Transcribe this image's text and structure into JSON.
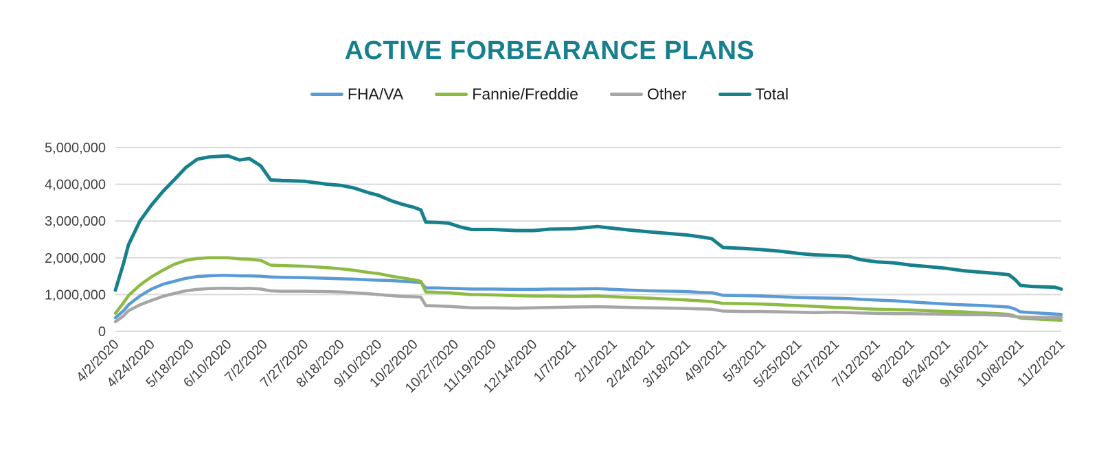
{
  "header": {
    "title": "ACTIVE FORBEARANCE PLANS",
    "title_color": "#17808F"
  },
  "chart_data": {
    "type": "line",
    "title": "ACTIVE FORBEARANCE PLANS",
    "xlabel": "",
    "ylabel": "",
    "ylim": [
      0,
      5000000
    ],
    "grid": true,
    "grid_color": "#D9D9D9",
    "axis_text_color": "#3F3F3F",
    "legend_position": "top",
    "ytick_values": [
      0,
      1000000,
      2000000,
      3000000,
      4000000,
      5000000
    ],
    "ytick_labels": [
      "0",
      "1,000,000",
      "2,000,000",
      "3,000,000",
      "4,000,000",
      "5,000,000"
    ],
    "xtick_labels": [
      "4/2/2020",
      "4/24/2020",
      "5/18/2020",
      "6/10/2020",
      "7/2/2020",
      "7/27/2020",
      "8/18/2020",
      "9/10/2020",
      "10/2/2020",
      "10/27/2020",
      "11/19/2020",
      "12/14/2020",
      "1/7/2021",
      "2/1/2021",
      "2/24/2021",
      "3/18/2021",
      "4/9/2021",
      "5/3/2021",
      "5/25/2021",
      "6/17/2021",
      "7/12/2021",
      "8/2/2021",
      "8/24/2021",
      "9/16/2021",
      "10/8/2021",
      "11/2/2021"
    ],
    "x": [
      "4/2/2020",
      "4/7/2020",
      "4/10/2020",
      "4/17/2020",
      "4/24/2020",
      "5/1/2020",
      "5/8/2020",
      "5/15/2020",
      "5/22/2020",
      "5/29/2020",
      "6/5/2020",
      "6/10/2020",
      "6/17/2020",
      "6/23/2020",
      "6/30/2020",
      "7/6/2020",
      "7/13/2020",
      "7/27/2020",
      "8/10/2020",
      "8/18/2020",
      "8/26/2020",
      "9/4/2020",
      "9/10/2020",
      "9/18/2020",
      "9/25/2020",
      "10/2/2020",
      "10/6/2020",
      "10/9/2020",
      "10/16/2020",
      "10/23/2020",
      "10/30/2020",
      "11/6/2020",
      "11/19/2020",
      "12/4/2020",
      "12/14/2020",
      "12/24/2020",
      "1/7/2021",
      "1/22/2021",
      "2/1/2021",
      "2/12/2021",
      "2/24/2021",
      "3/10/2021",
      "3/18/2021",
      "3/26/2021",
      "4/2/2021",
      "4/9/2021",
      "4/23/2021",
      "5/3/2021",
      "5/14/2021",
      "5/25/2021",
      "6/4/2021",
      "6/17/2021",
      "6/25/2021",
      "7/2/2021",
      "7/12/2021",
      "7/23/2021",
      "8/2/2021",
      "8/13/2021",
      "8/24/2021",
      "9/3/2021",
      "9/16/2021",
      "9/24/2021",
      "10/1/2021",
      "10/5/2021",
      "10/8/2021",
      "10/15/2021",
      "10/22/2021",
      "10/29/2021",
      "11/2/2021"
    ],
    "series": [
      {
        "name": "FHA/VA",
        "color": "#5B9BD5",
        "width": 4.5,
        "values": [
          370000,
          560000,
          720000,
          960000,
          1150000,
          1280000,
          1360000,
          1440000,
          1490000,
          1510000,
          1520000,
          1520000,
          1510000,
          1510000,
          1500000,
          1480000,
          1470000,
          1460000,
          1440000,
          1430000,
          1420000,
          1400000,
          1390000,
          1380000,
          1360000,
          1340000,
          1330000,
          1180000,
          1180000,
          1170000,
          1160000,
          1150000,
          1150000,
          1140000,
          1140000,
          1150000,
          1150000,
          1160000,
          1140000,
          1120000,
          1100000,
          1090000,
          1080000,
          1060000,
          1050000,
          980000,
          970000,
          960000,
          940000,
          920000,
          910000,
          900000,
          890000,
          870000,
          850000,
          830000,
          800000,
          770000,
          740000,
          720000,
          700000,
          680000,
          660000,
          600000,
          530000,
          510000,
          490000,
          470000,
          460000
        ]
      },
      {
        "name": "Fannie/Freddie",
        "color": "#8CBA43",
        "width": 4.5,
        "values": [
          490000,
          780000,
          970000,
          1260000,
          1480000,
          1660000,
          1820000,
          1930000,
          1980000,
          2000000,
          2000000,
          2000000,
          1970000,
          1960000,
          1930000,
          1800000,
          1790000,
          1770000,
          1730000,
          1700000,
          1660000,
          1600000,
          1570000,
          1500000,
          1450000,
          1400000,
          1360000,
          1070000,
          1060000,
          1050000,
          1020000,
          1000000,
          990000,
          970000,
          960000,
          960000,
          950000,
          960000,
          940000,
          920000,
          900000,
          870000,
          850000,
          830000,
          810000,
          760000,
          750000,
          740000,
          720000,
          700000,
          680000,
          650000,
          640000,
          620000,
          600000,
          590000,
          580000,
          560000,
          540000,
          530000,
          500000,
          480000,
          460000,
          410000,
          360000,
          340000,
          320000,
          310000,
          300000
        ]
      },
      {
        "name": "Other",
        "color": "#A6A6A6",
        "width": 4.5,
        "values": [
          260000,
          420000,
          560000,
          720000,
          840000,
          950000,
          1030000,
          1100000,
          1140000,
          1160000,
          1170000,
          1170000,
          1160000,
          1170000,
          1150000,
          1100000,
          1090000,
          1090000,
          1080000,
          1070000,
          1050000,
          1020000,
          1000000,
          970000,
          950000,
          940000,
          930000,
          700000,
          690000,
          680000,
          660000,
          640000,
          640000,
          630000,
          640000,
          650000,
          660000,
          670000,
          660000,
          650000,
          640000,
          630000,
          620000,
          610000,
          600000,
          550000,
          540000,
          540000,
          530000,
          520000,
          510000,
          520000,
          510000,
          500000,
          490000,
          480000,
          480000,
          470000,
          460000,
          450000,
          450000,
          440000,
          430000,
          400000,
          390000,
          380000,
          380000,
          380000,
          380000
        ]
      },
      {
        "name": "Total",
        "color": "#16808D",
        "width": 5,
        "values": [
          1120000,
          1850000,
          2350000,
          3000000,
          3430000,
          3800000,
          4120000,
          4450000,
          4680000,
          4740000,
          4760000,
          4770000,
          4660000,
          4700000,
          4500000,
          4120000,
          4100000,
          4080000,
          4000000,
          3970000,
          3900000,
          3770000,
          3700000,
          3550000,
          3450000,
          3370000,
          3300000,
          2970000,
          2960000,
          2940000,
          2840000,
          2770000,
          2770000,
          2740000,
          2740000,
          2780000,
          2790000,
          2850000,
          2800000,
          2750000,
          2700000,
          2650000,
          2620000,
          2570000,
          2520000,
          2280000,
          2250000,
          2220000,
          2180000,
          2120000,
          2080000,
          2060000,
          2040000,
          1950000,
          1890000,
          1860000,
          1800000,
          1760000,
          1710000,
          1650000,
          1600000,
          1570000,
          1540000,
          1400000,
          1250000,
          1220000,
          1210000,
          1200000,
          1150000
        ]
      }
    ]
  }
}
